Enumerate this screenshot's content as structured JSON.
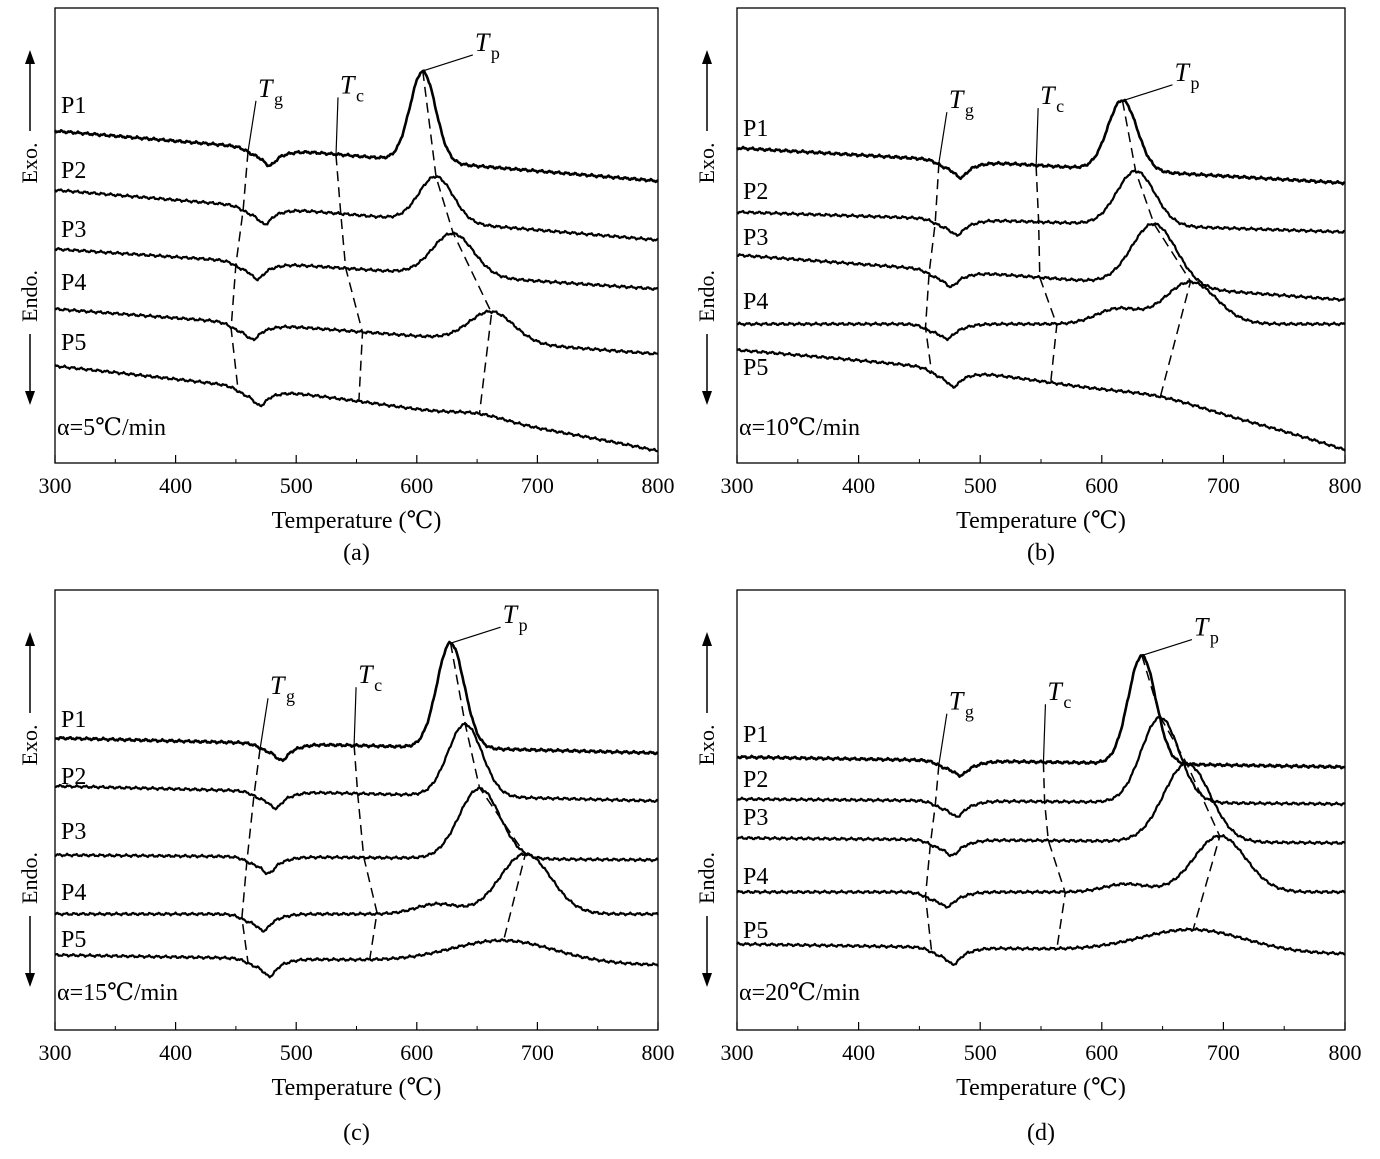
{
  "x_axis_label": "Temperature (℃)",
  "y_axis_labels": {
    "exo": "Exo.",
    "endo": "Endo."
  },
  "marker_labels": {
    "tg": "T",
    "tg_sub": "g",
    "tc": "T",
    "tc_sub": "c",
    "tp": "T",
    "tp_sub": "p"
  },
  "chart_data": [
    {
      "type": "line",
      "panel": "(a)",
      "rate_label": "α=5℃/min",
      "xlim": [
        300,
        800
      ],
      "xticks": [
        300,
        400,
        500,
        600,
        700,
        800
      ],
      "series": [
        {
          "name": "P1",
          "tg": 460,
          "tc": 533,
          "tp": 605
        },
        {
          "name": "P2",
          "tg": 456,
          "tc": 537,
          "tp": 616
        },
        {
          "name": "P3",
          "tg": 450,
          "tc": 541,
          "tp": 630
        },
        {
          "name": "P4",
          "tg": 446,
          "tc": 555,
          "tp": 662
        },
        {
          "name": "P5",
          "tg": 452,
          "tc": 552,
          "tp": 652
        }
      ]
    },
    {
      "type": "line",
      "panel": "(b)",
      "rate_label": "α=10℃/min",
      "xlim": [
        300,
        800
      ],
      "xticks": [
        300,
        400,
        500,
        600,
        700,
        800
      ],
      "series": [
        {
          "name": "P1",
          "tg": 466,
          "tc": 546,
          "tp": 617
        },
        {
          "name": "P2",
          "tg": 463,
          "tc": 548,
          "tp": 628
        },
        {
          "name": "P3",
          "tg": 458,
          "tc": 549,
          "tp": 643
        },
        {
          "name": "P4",
          "tg": 455,
          "tc": 563,
          "tp": 673
        },
        {
          "name": "P5",
          "tg": 460,
          "tc": 558,
          "tp": 648
        }
      ]
    },
    {
      "type": "line",
      "panel": "(c)",
      "rate_label": "α=15℃/min",
      "xlim": [
        300,
        800
      ],
      "xticks": [
        300,
        400,
        500,
        600,
        700,
        800
      ],
      "series": [
        {
          "name": "P1",
          "tg": 470,
          "tc": 548,
          "tp": 628
        },
        {
          "name": "P2",
          "tg": 465,
          "tc": 551,
          "tp": 640
        },
        {
          "name": "P3",
          "tg": 459,
          "tc": 556,
          "tp": 652
        },
        {
          "name": "P4",
          "tg": 455,
          "tc": 567,
          "tp": 690
        },
        {
          "name": "P5",
          "tg": 460,
          "tc": 561,
          "tp": 672
        }
      ]
    },
    {
      "type": "line",
      "panel": "(d)",
      "rate_label": "α=20℃/min",
      "xlim": [
        300,
        800
      ],
      "xticks": [
        300,
        400,
        500,
        600,
        700,
        800
      ],
      "series": [
        {
          "name": "P1",
          "tg": 466,
          "tc": 552,
          "tp": 633
        },
        {
          "name": "P2",
          "tg": 463,
          "tc": 553,
          "tp": 648
        },
        {
          "name": "P3",
          "tg": 459,
          "tc": 556,
          "tp": 670
        },
        {
          "name": "P4",
          "tg": 455,
          "tc": 570,
          "tp": 697
        },
        {
          "name": "P5",
          "tg": 460,
          "tc": 563,
          "tp": 675
        }
      ]
    }
  ]
}
